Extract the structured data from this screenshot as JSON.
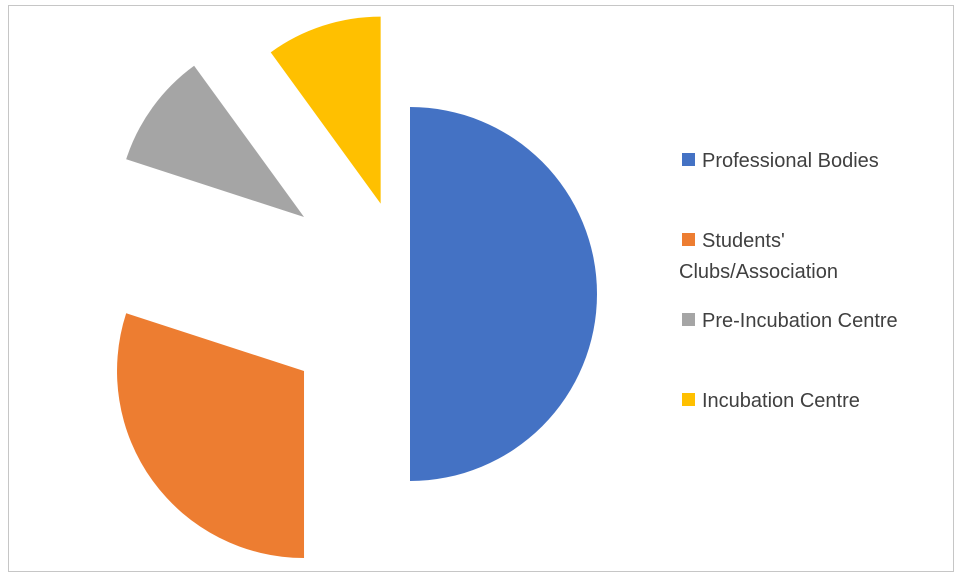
{
  "chart_data": {
    "type": "pie",
    "title": "",
    "exploded": true,
    "slices": [
      {
        "label": "Professional Bodies",
        "legend_lines": [
          "Professional Bodies"
        ],
        "value": 50,
        "color": "#4472C4"
      },
      {
        "label": "Students' Clubs/Association",
        "legend_lines": [
          "Students'",
          "Clubs/Association"
        ],
        "value": 30,
        "color": "#ED7D31"
      },
      {
        "label": "Pre-Incubation Centre",
        "legend_lines": [
          "Pre-Incubation Centre"
        ],
        "value": 10,
        "color": "#A5A5A5"
      },
      {
        "label": "Incubation Centre",
        "legend_lines": [
          "Incubation Centre"
        ],
        "value": 10,
        "color": "#FFC000"
      }
    ],
    "legend_position": "right"
  }
}
